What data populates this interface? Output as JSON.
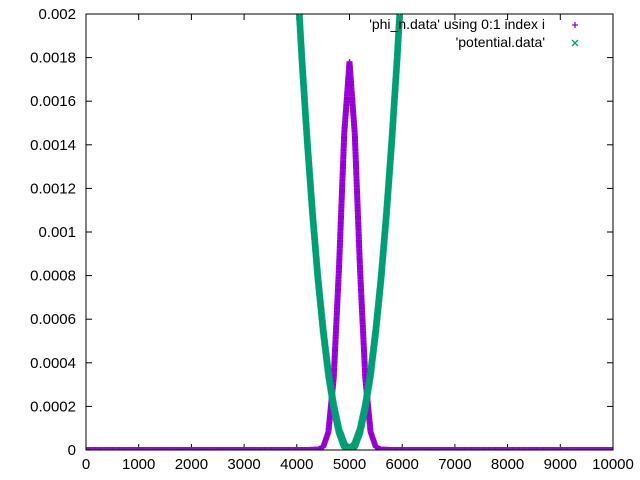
{
  "chart_data": {
    "type": "scatter",
    "title": "",
    "xlabel": "",
    "ylabel": "",
    "xlim": [
      0,
      10000
    ],
    "ylim": [
      0,
      0.002
    ],
    "grid": false,
    "legend_position": "top-right",
    "x_ticks": [
      "0",
      "1000",
      "2000",
      "3000",
      "4000",
      "5000",
      "6000",
      "7000",
      "8000",
      "9000",
      "10000"
    ],
    "y_ticks": [
      "0",
      "0.0002",
      "0.0004",
      "0.0006",
      "0.0008",
      "0.001",
      "0.0012",
      "0.0014",
      "0.0016",
      "0.0018",
      "0.002"
    ],
    "series": [
      {
        "name": "'phi_n.data' using 0:1 index i",
        "marker": "plus",
        "color": "#9400d3",
        "x": [
          0,
          1000,
          2000,
          3000,
          4000,
          4200,
          4400,
          4500,
          4600,
          4700,
          4800,
          4900,
          5000,
          5100,
          5200,
          5300,
          5400,
          5500,
          5600,
          5800,
          6000,
          7000,
          8000,
          9000,
          10000
        ],
        "y": [
          0,
          0,
          0,
          0,
          0,
          1e-08,
          2.2e-06,
          1.3e-05,
          8.3e-05,
          0.00033,
          0.00083,
          0.00145,
          0.00178,
          0.00145,
          0.00083,
          0.00033,
          8.3e-05,
          1.3e-05,
          2.2e-06,
          1e-08,
          0,
          0,
          0,
          0,
          0
        ]
      },
      {
        "name": "'potential.data'",
        "marker": "cross",
        "color": "#009e73",
        "x": [
          4050,
          4100,
          4200,
          4300,
          4400,
          4500,
          4600,
          4700,
          4800,
          4900,
          5000,
          5100,
          5200,
          5300,
          5400,
          5500,
          5600,
          5700,
          5800,
          5900,
          5950
        ],
        "y": [
          0.00199,
          0.00178,
          0.00141,
          0.00108,
          0.00079,
          0.00055,
          0.00035,
          0.0002,
          8.8e-05,
          2.2e-05,
          0,
          2.2e-05,
          8.8e-05,
          0.0002,
          0.00035,
          0.00055,
          0.00079,
          0.00108,
          0.00141,
          0.00178,
          0.00199
        ]
      }
    ]
  }
}
